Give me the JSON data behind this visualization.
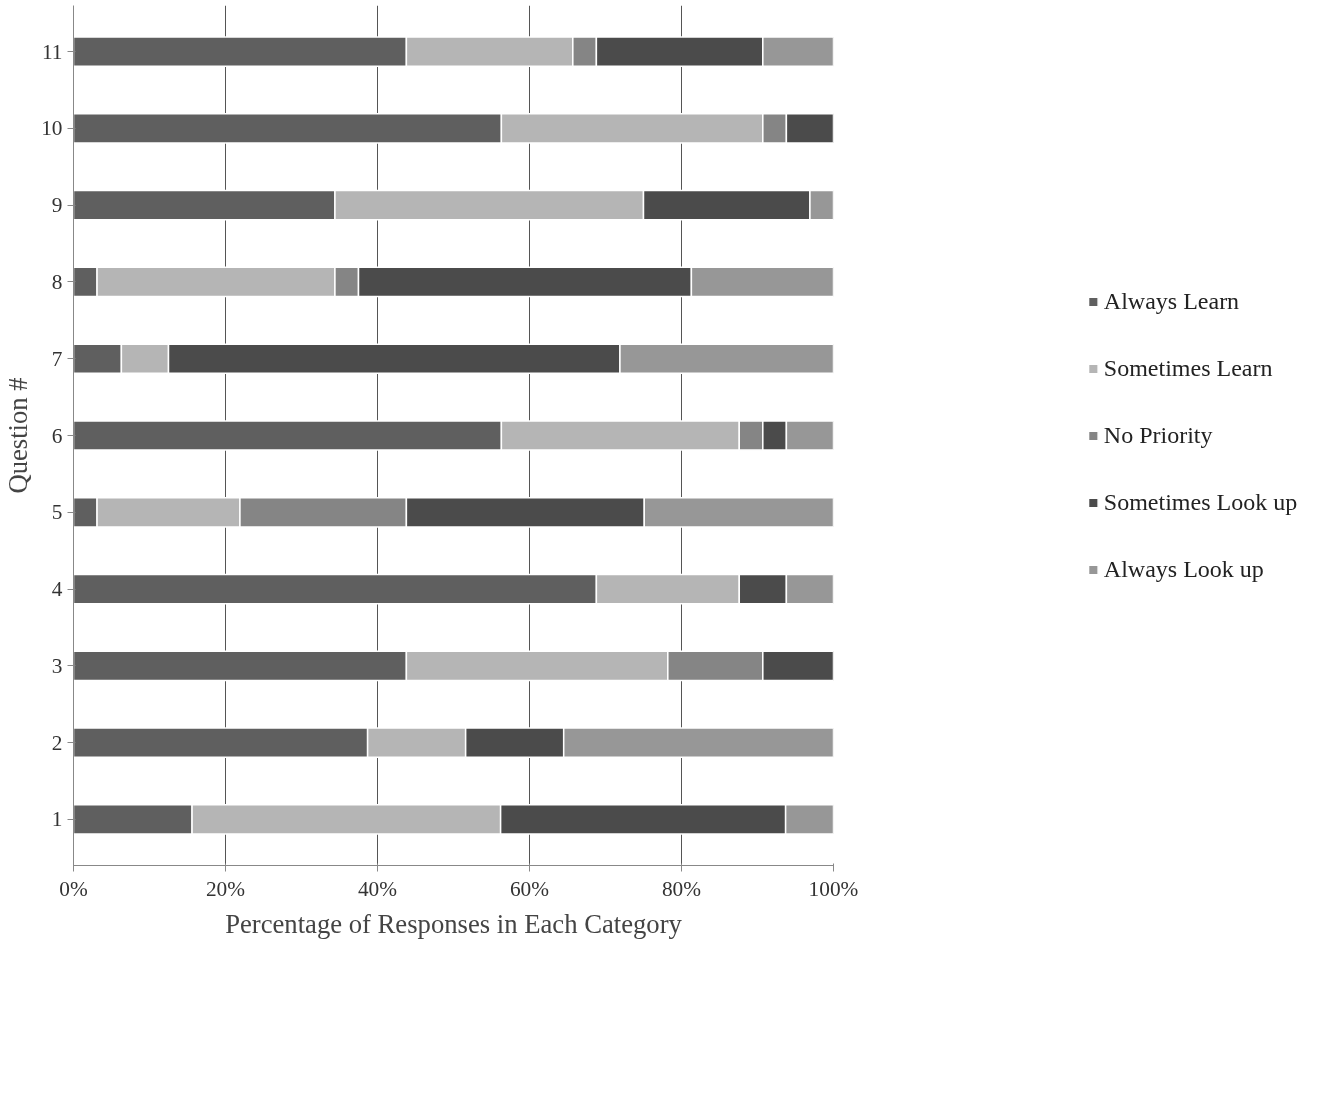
{
  "chart_data": {
    "type": "bar",
    "orientation": "horizontal",
    "stacked": true,
    "xlabel": "Percentage of Responses in Each Category",
    "ylabel": "Question #",
    "categories": [
      "11",
      "10",
      "9",
      "8",
      "7",
      "6",
      "5",
      "4",
      "3",
      "2",
      "1"
    ],
    "series": [
      {
        "name": "Always Learn",
        "color": "#5f5f5f",
        "values": [
          43.8,
          56.3,
          34.4,
          3.1,
          6.3,
          56.3,
          3.1,
          68.8,
          43.8,
          38.7,
          15.6
        ]
      },
      {
        "name": "Sometimes Learn",
        "color": "#b5b5b5",
        "values": [
          21.9,
          34.4,
          40.6,
          31.3,
          6.2,
          31.3,
          18.8,
          18.8,
          34.4,
          12.9,
          40.6
        ]
      },
      {
        "name": "No Priority",
        "color": "#858585",
        "values": [
          3.1,
          3.1,
          null,
          3.1,
          null,
          3.1,
          21.9,
          null,
          12.5,
          null,
          null
        ]
      },
      {
        "name": "Sometimes Look up",
        "color": "#4b4b4b",
        "values": [
          21.9,
          6.2,
          21.9,
          43.8,
          59.4,
          3.1,
          31.3,
          6.2,
          9.3,
          12.9,
          37.5
        ]
      },
      {
        "name": "Always Look up",
        "color": "#979797",
        "values": [
          9.3,
          null,
          3.1,
          18.7,
          28.1,
          6.2,
          24.9,
          6.2,
          null,
          35.5,
          6.3
        ]
      }
    ],
    "xlim": [
      0,
      100
    ],
    "xticks": [
      {
        "value": 0,
        "label": "0%"
      },
      {
        "value": 20,
        "label": "20%"
      },
      {
        "value": 40,
        "label": "40%"
      },
      {
        "value": 60,
        "label": "60%"
      },
      {
        "value": 80,
        "label": "80%"
      },
      {
        "value": 100,
        "label": "100%"
      }
    ],
    "grid": "x",
    "legend": "right"
  }
}
